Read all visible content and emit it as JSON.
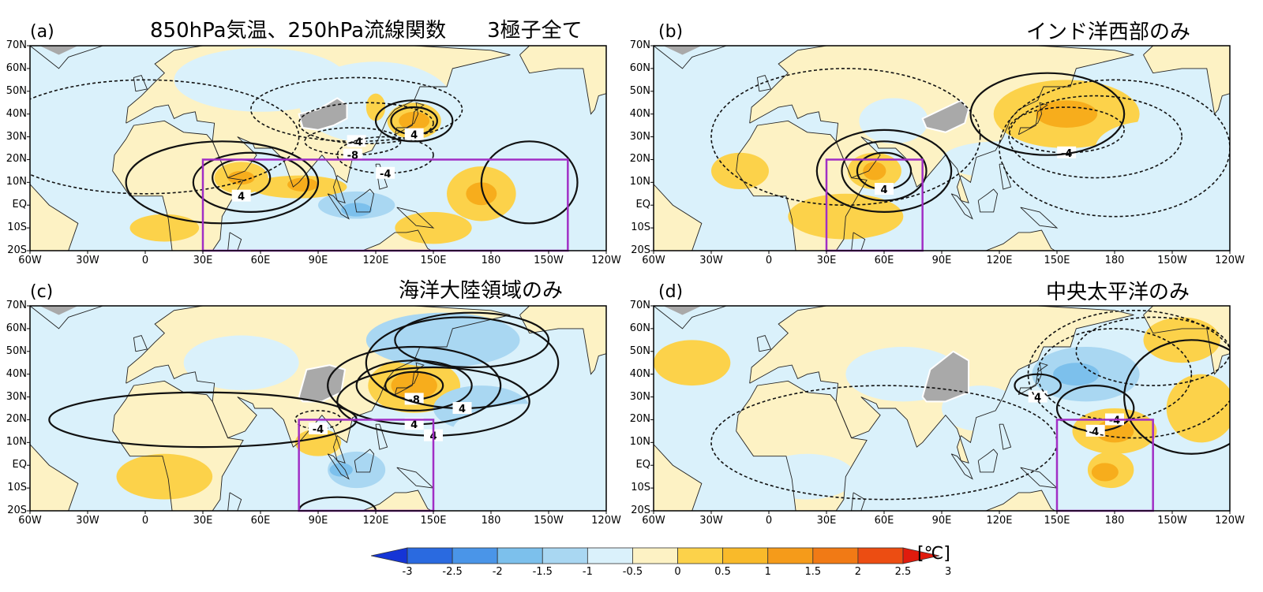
{
  "colors": {
    "ocean_neg": "#daf1fb",
    "land_pos": "#fdf2c4",
    "warm1": "#fcd24a",
    "warm2": "#f7ad1c",
    "cool1": "#a9d7f2",
    "cool2": "#7cc0ec",
    "gray": "#a9a9a9",
    "box": "#a12fc5"
  },
  "axes": {
    "yticks": [
      "70N",
      "60N",
      "50N",
      "40N",
      "30N",
      "20N",
      "10N",
      "EQ",
      "10S",
      "20S"
    ],
    "xticks": [
      "60W",
      "30W",
      "0",
      "30E",
      "60E",
      "90E",
      "120E",
      "150E",
      "180",
      "150W",
      "120W"
    ],
    "lon_range": [
      -60,
      240
    ],
    "lat_range": [
      -20,
      70
    ]
  },
  "panels": [
    {
      "letter": "(a)",
      "title": "850hPa気温、250hPa流線関数　　3極子全て",
      "box": [
        30,
        220
      ],
      "contour_labels": [
        "-4",
        "-8",
        "-4",
        "4",
        "4"
      ]
    },
    {
      "letter": "(b)",
      "title": "インド洋西部のみ",
      "box": [
        30,
        80
      ],
      "contour_labels": [
        "-4",
        "4"
      ]
    },
    {
      "letter": "(c)",
      "title": "海洋大陸領域のみ",
      "box": [
        80,
        150
      ],
      "contour_labels": [
        "-4",
        "4",
        "-8",
        "4",
        "4"
      ]
    },
    {
      "letter": "(d)",
      "title": "中央太平洋のみ",
      "box": [
        150,
        200
      ],
      "contour_labels": [
        "-4",
        "4",
        "4"
      ]
    }
  ],
  "colorbar": {
    "labels": [
      "-3",
      "-2.5",
      "-2",
      "-1.5",
      "-1",
      "-0.5",
      "0",
      "0.5",
      "1",
      "1.5",
      "2",
      "2.5",
      "3"
    ],
    "colors": [
      "#1535d6",
      "#2a6ae0",
      "#4a95e8",
      "#7cc0ec",
      "#a9d7f2",
      "#daf1fb",
      "#fdf2c4",
      "#fcd24a",
      "#f9ba2a",
      "#f59b1a",
      "#f17a15",
      "#ec4d12",
      "#e01b0d"
    ],
    "unit": "[℃]"
  }
}
